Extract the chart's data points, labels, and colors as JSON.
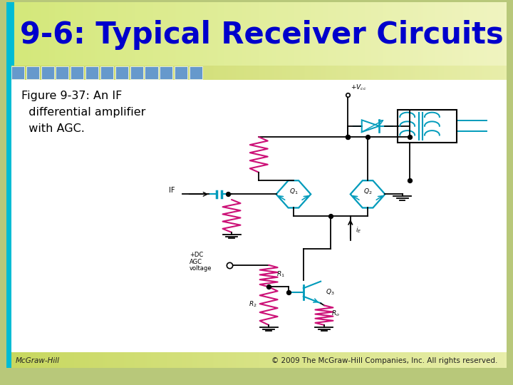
{
  "title": "9-6: Typical Receiver Circuits",
  "title_color": "#0000CC",
  "title_fontsize": 30,
  "bg_outer": "#b8c87a",
  "bg_inner": "#ffffff",
  "header_teal": "#00bcd4",
  "blue_sq_color": "#6699cc",
  "footer_left": "McGraw-Hill",
  "footer_right": "© 2009 The McGraw-Hill Companies, Inc. All rights reserved.",
  "footer_fontsize": 7.5,
  "resistor_color": "#cc1177",
  "transistor_color": "#009bbb",
  "wire_color": "#000000",
  "label_fontsize": 6.5,
  "caption_line1": "Figure 9-37: An IF",
  "caption_line2": "  differential amplifier",
  "caption_line3": "  with AGC."
}
